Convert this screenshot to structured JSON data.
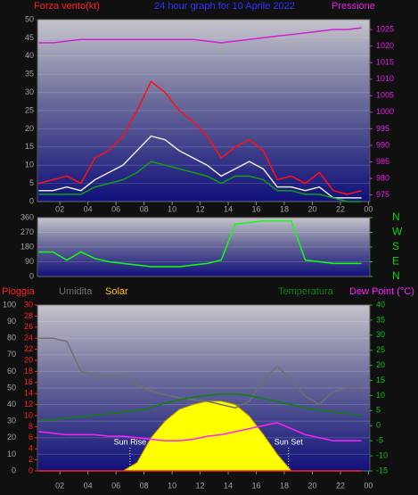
{
  "chart_data": [
    {
      "type": "line",
      "title": "24 hour graph for 10 Aprile 2022",
      "ylabel": "Forza vento(kt)",
      "y2label": "Pressione",
      "ycolor": "#a0a0a0",
      "y2color": "#e020e0",
      "titlecolor": "#3030ff",
      "ylabelcolor": "#ff2020",
      "x": [
        0.5,
        1.5,
        2.5,
        3.5,
        4.5,
        5.5,
        6.5,
        7.5,
        8.5,
        9.5,
        10.5,
        11.5,
        12.5,
        13.5,
        14.5,
        15.5,
        16.5,
        17.5,
        18.5,
        19.5,
        20.5,
        21.5,
        22.5,
        23.5
      ],
      "xlim": [
        0.4,
        24.1
      ],
      "xticks": [
        {
          "value": 2,
          "label": "02"
        },
        {
          "value": 4,
          "label": "04"
        },
        {
          "value": 6,
          "label": "06"
        },
        {
          "value": 8,
          "label": "08"
        },
        10,
        12,
        14,
        16,
        18,
        20,
        22,
        {
          "value": 24,
          "label": "00"
        }
      ],
      "ylim": [
        0,
        50
      ],
      "yticks": [
        0,
        5,
        10,
        15,
        20,
        25,
        30,
        35,
        40,
        45,
        50
      ],
      "y2lim": [
        973,
        1028
      ],
      "y2ticks": [
        975,
        980,
        985,
        990,
        995,
        1000,
        1005,
        1010,
        1015,
        1020,
        1025
      ],
      "series": [
        {
          "color": "#ff1010",
          "values": [
            5,
            6,
            7,
            5,
            12,
            14,
            18,
            25,
            33,
            30,
            25,
            22,
            18,
            12,
            15,
            17,
            14,
            6,
            7,
            5,
            8,
            3,
            2,
            3
          ]
        },
        {
          "color": "#e8e8e8",
          "values": [
            3,
            3,
            4,
            3,
            6,
            8,
            10,
            14,
            18,
            17,
            14,
            12,
            10,
            7,
            9,
            11,
            9,
            4,
            4,
            3,
            4,
            1,
            1,
            1
          ]
        },
        {
          "color": "#10a010",
          "values": [
            2,
            2,
            2,
            2,
            4,
            5,
            6,
            8,
            11,
            10,
            9,
            8,
            7,
            5,
            7,
            7,
            6,
            3,
            3,
            2,
            2,
            1,
            0,
            0
          ]
        },
        {
          "color": "#d020d0",
          "axis": "y2",
          "values": [
            1021,
            1021,
            1021.5,
            1022,
            1022,
            1022,
            1022,
            1022,
            1022,
            1022,
            1022,
            1022,
            1021.5,
            1021,
            1021.5,
            1022,
            1022.5,
            1023,
            1023.5,
            1024,
            1024.5,
            1025,
            1025,
            1025.5
          ]
        }
      ]
    },
    {
      "type": "line",
      "ycolor": "#a0a0a0",
      "y2color": "#10d010",
      "x": [
        0.5,
        1.5,
        2.5,
        3.5,
        4.5,
        5.5,
        6.5,
        7.5,
        8.5,
        9.5,
        10.5,
        11.5,
        12.5,
        13.5,
        14.5,
        15.5,
        16.5,
        17.5,
        18.5,
        19.5,
        20.5,
        21.5,
        22.5,
        23.5
      ],
      "xlim": [
        0.4,
        24.1
      ],
      "ylim": [
        0,
        360
      ],
      "yticks": [
        0,
        90,
        180,
        270,
        360
      ],
      "y2lim": [
        0,
        360
      ],
      "y2ticks": [
        {
          "value": 360,
          "label": "N"
        },
        {
          "value": 270,
          "label": "W"
        },
        {
          "value": 180,
          "label": "S"
        },
        {
          "value": 90,
          "label": "E"
        },
        {
          "value": 0,
          "label": "N"
        }
      ],
      "series": [
        {
          "color": "#10ff10",
          "values": [
            150,
            150,
            100,
            150,
            110,
            90,
            80,
            70,
            60,
            60,
            60,
            70,
            80,
            100,
            320,
            330,
            340,
            340,
            340,
            100,
            90,
            80,
            80,
            80
          ]
        }
      ]
    },
    {
      "type": "line",
      "ycolor": "#a0a0a0",
      "y2color": "#10c010",
      "y3color": "#ff2020",
      "x": [
        0.5,
        1.5,
        2.5,
        3.5,
        4.5,
        5.5,
        6.5,
        7.5,
        8.5,
        9.5,
        10.5,
        11.5,
        12.5,
        13.5,
        14.5,
        15.5,
        16.5,
        17.5,
        18.5,
        19.5,
        20.5,
        21.5,
        22.5,
        23.5
      ],
      "xlim": [
        0.4,
        24.1
      ],
      "xticks": [
        {
          "value": 2,
          "label": "02"
        },
        {
          "value": 4,
          "label": "04"
        },
        {
          "value": 6,
          "label": "06"
        },
        {
          "value": 8,
          "label": "08"
        },
        10,
        12,
        14,
        16,
        18,
        20,
        22,
        {
          "value": 24,
          "label": "00"
        }
      ],
      "ylim": [
        0,
        100
      ],
      "yticks": [
        0,
        10,
        20,
        30,
        40,
        50,
        60,
        70,
        80,
        90,
        100
      ],
      "y3lim": [
        0,
        30
      ],
      "y3ticks": [
        0,
        2,
        4,
        6,
        8,
        10,
        12,
        14,
        16,
        18,
        20,
        22,
        24,
        26,
        28,
        30
      ],
      "y2lim": [
        -15,
        40
      ],
      "y2ticks": [
        -15,
        -10,
        -5,
        0,
        5,
        10,
        15,
        20,
        25,
        30,
        35,
        40
      ],
      "series": [
        {
          "name": "Pioggia",
          "color": "#ff2020",
          "axis": "y3",
          "values": [
            0,
            0,
            0,
            0,
            0,
            0,
            0,
            0,
            0,
            0,
            0,
            0,
            0,
            0,
            0,
            0,
            0,
            0,
            0,
            0,
            0,
            0,
            0,
            0
          ]
        },
        {
          "name": "Umidita",
          "color": "#707070",
          "values": [
            80,
            80,
            78,
            60,
            58,
            57,
            57,
            52,
            48,
            46,
            44,
            43,
            42,
            40,
            38,
            42,
            55,
            63,
            55,
            45,
            40,
            48,
            50,
            50
          ]
        },
        {
          "name": "Solar",
          "color": "#ffff00",
          "kind": "area",
          "values": [
            0,
            0,
            0,
            0,
            0,
            0,
            0,
            5,
            20,
            30,
            37,
            40,
            42,
            42,
            40,
            33,
            22,
            10,
            0,
            0,
            0,
            0,
            0,
            0
          ]
        },
        {
          "name": "Temperatura",
          "color": "#108010",
          "axis": "y2",
          "values": [
            2,
            2,
            2.5,
            3,
            3.5,
            4,
            4.5,
            5,
            6,
            7.5,
            8.5,
            9.5,
            10,
            10.5,
            10.5,
            10,
            9,
            8,
            7,
            6,
            5,
            4.5,
            4,
            3.5
          ]
        },
        {
          "name": "Dew Point (°C)",
          "color": "#ff20ff",
          "axis": "y2",
          "values": [
            -2,
            -2.5,
            -3,
            -3,
            -3,
            -3.5,
            -3.5,
            -4,
            -4.5,
            -5,
            -5,
            -4.5,
            -3.5,
            -3,
            -2,
            -1,
            0,
            1,
            -1,
            -3,
            -4,
            -5,
            -5,
            -5
          ]
        }
      ],
      "annotations": [
        {
          "text": "Sun Rise",
          "x": 7
        },
        {
          "text": "Sun Set",
          "x": 18.3
        }
      ]
    }
  ]
}
